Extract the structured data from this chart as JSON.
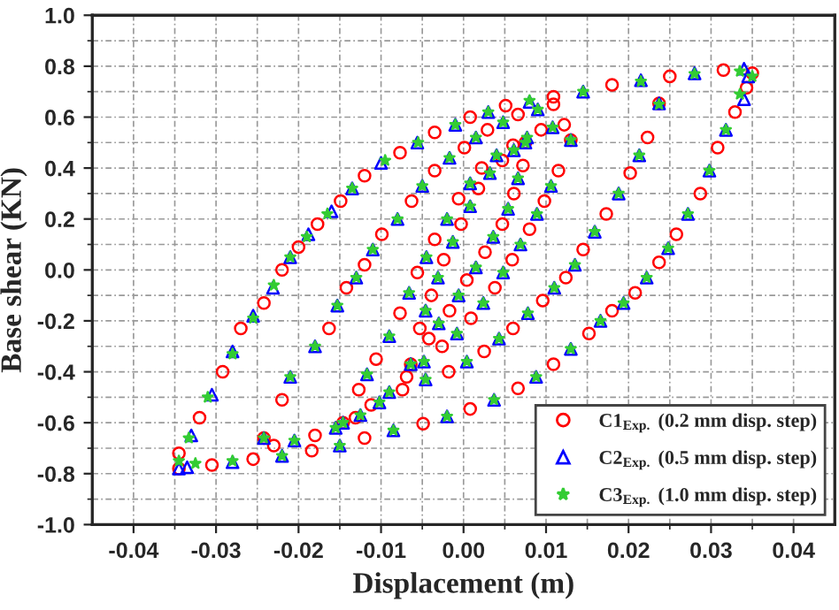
{
  "chart_data": {
    "type": "scatter",
    "xlabel": "Displacement (m)",
    "ylabel": "Base shear (KN)",
    "xlim": [
      -0.045,
      0.045
    ],
    "ylim": [
      -1.0,
      1.0
    ],
    "xticks": [
      -0.04,
      -0.03,
      -0.02,
      -0.01,
      {
        "value": 0,
        "label": "0.00"
      },
      0.01,
      0.02,
      0.03,
      0.04
    ],
    "yticks": [
      {
        "value": -1,
        "label": "-1.0"
      },
      -0.8,
      -0.6,
      -0.4,
      -0.2,
      {
        "value": 0,
        "label": "0.0"
      },
      0.2,
      0.4,
      0.6,
      0.8,
      {
        "value": 1,
        "label": "1.0"
      }
    ],
    "grid": true,
    "legend": "bottom right",
    "series": [
      {
        "name": "C1$_{Exp.}$ (0.2 mm disp. step)",
        "color": "#ff0000",
        "marker": "circle",
        "x": [
          -0.0345,
          -0.0345,
          -0.032,
          -0.0292,
          -0.027,
          -0.0242,
          -0.022,
          -0.02,
          -0.0177,
          -0.0149,
          -0.012,
          -0.0077,
          -0.0035,
          0.0008,
          0.0051,
          0.0109,
          0.018,
          0.025,
          0.0315,
          0.035,
          0.0343,
          0.0329,
          0.0308,
          0.0287,
          0.0258,
          0.0237,
          0.0208,
          0.018,
          0.0152,
          0.0109,
          0.0066,
          0.0008,
          -0.0049,
          -0.012,
          -0.0184,
          -0.0255,
          -0.0305,
          -0.0242,
          -0.022,
          -0.0163,
          -0.0142,
          -0.012,
          -0.0099,
          -0.0063,
          -0.0035,
          0.0001,
          0.0029,
          0.0066,
          0.0109,
          0.0237,
          0.0223,
          0.0202,
          0.0173,
          0.0145,
          0.0124,
          0.0096,
          0.006,
          0.0025,
          -0.0018,
          -0.0074,
          -0.0131,
          -0.018,
          -0.023,
          -0.0146,
          -0.0127,
          -0.0106,
          -0.0077,
          -0.0056,
          -0.0035,
          -0.0006,
          0.0022,
          0.006,
          0.0094,
          0.0122,
          0.013,
          0.0115,
          0.0098,
          0.008,
          0.0059,
          0.0038,
          0.0009,
          -0.0026,
          -0.0069,
          -0.0112,
          -0.0064,
          -0.0053,
          -0.0039,
          -0.0024,
          -0.0003,
          0.0018,
          0.0047,
          0.0075,
          0.0072,
          0.0061,
          0.0047,
          0.0026,
          0.0004,
          -0.0017,
          -0.0042
        ],
        "values": [
          -0.78,
          -0.72,
          -0.58,
          -0.4,
          -0.23,
          -0.13,
          0.0,
          0.09,
          0.18,
          0.27,
          0.37,
          0.46,
          0.54,
          0.6,
          0.645,
          0.68,
          0.727,
          0.76,
          0.785,
          0.773,
          0.715,
          0.62,
          0.48,
          0.3,
          0.14,
          0.03,
          -0.09,
          -0.16,
          -0.25,
          -0.37,
          -0.465,
          -0.546,
          -0.604,
          -0.66,
          -0.71,
          -0.743,
          -0.766,
          -0.66,
          -0.51,
          -0.23,
          -0.07,
          0.02,
          0.14,
          0.27,
          0.39,
          0.48,
          0.55,
          0.61,
          0.65,
          0.654,
          0.52,
          0.38,
          0.22,
          0.08,
          -0.03,
          -0.12,
          -0.23,
          -0.32,
          -0.4,
          -0.47,
          -0.58,
          -0.65,
          -0.69,
          -0.6,
          -0.47,
          -0.35,
          -0.17,
          -0.01,
          0.12,
          0.28,
          0.4,
          0.49,
          0.55,
          0.57,
          0.51,
          0.39,
          0.27,
          0.16,
          0.04,
          -0.07,
          -0.19,
          -0.3,
          -0.42,
          -0.53,
          -0.37,
          -0.23,
          -0.1,
          0.04,
          0.18,
          0.32,
          0.43,
          0.5,
          0.41,
          0.3,
          0.18,
          0.07,
          -0.04,
          -0.16,
          -0.27
        ]
      },
      {
        "name": "C2$_{Exp.}$ (0.5 mm disp. step)",
        "color": "#0000ff",
        "marker": "triangle",
        "x": [
          -0.0345,
          -0.033,
          -0.0305,
          -0.028,
          -0.0255,
          -0.0231,
          -0.021,
          -0.0188,
          -0.016,
          -0.0135,
          -0.01,
          -0.0056,
          -0.001,
          0.003,
          0.008,
          0.0145,
          0.0215,
          0.028,
          0.034,
          0.0345,
          0.034,
          0.0318,
          0.0298,
          0.0272,
          0.0248,
          0.0222,
          0.0194,
          0.0166,
          0.013,
          0.0088,
          0.0037,
          -0.002,
          -0.0085,
          -0.015,
          -0.022,
          -0.028,
          -0.0335,
          -0.0242,
          -0.021,
          -0.018,
          -0.0153,
          -0.013,
          -0.011,
          -0.008,
          -0.005,
          -0.0017,
          0.0015,
          0.0048,
          0.009,
          0.0237,
          0.0213,
          0.0188,
          0.0159,
          0.0135,
          0.011,
          0.0078,
          0.0043,
          0.0004,
          -0.0046,
          -0.0102,
          -0.0155,
          -0.0205,
          -0.0146,
          -0.0117,
          -0.009,
          -0.0066,
          -0.0045,
          -0.002,
          0.0008,
          0.004,
          0.0077,
          0.0108,
          0.013,
          0.0106,
          0.0089,
          0.0069,
          0.0048,
          0.0024,
          -0.0008,
          -0.0048,
          -0.009,
          -0.0125,
          -0.0064,
          -0.0046,
          -0.0031,
          -0.0013,
          0.0008,
          0.0032,
          0.0061,
          0.0075,
          0.0066,
          0.0054,
          0.0036,
          0.0015,
          -0.0006,
          -0.003
        ],
        "values": [
          -0.78,
          -0.65,
          -0.49,
          -0.32,
          -0.18,
          -0.07,
          0.05,
          0.14,
          0.23,
          0.32,
          0.42,
          0.5,
          0.57,
          0.62,
          0.66,
          0.7,
          0.745,
          0.772,
          0.79,
          0.76,
          0.67,
          0.55,
          0.39,
          0.22,
          0.085,
          -0.03,
          -0.13,
          -0.2,
          -0.31,
          -0.42,
          -0.51,
          -0.575,
          -0.63,
          -0.69,
          -0.73,
          -0.755,
          -0.775,
          -0.66,
          -0.42,
          -0.3,
          -0.14,
          -0.03,
          0.08,
          0.2,
          0.33,
          0.44,
          0.52,
          0.58,
          0.63,
          0.654,
          0.45,
          0.3,
          0.15,
          0.02,
          -0.07,
          -0.17,
          -0.27,
          -0.36,
          -0.43,
          -0.52,
          -0.62,
          -0.67,
          -0.6,
          -0.41,
          -0.26,
          -0.09,
          0.05,
          0.2,
          0.34,
          0.45,
          0.52,
          0.56,
          0.51,
          0.33,
          0.22,
          0.1,
          -0.01,
          -0.13,
          -0.25,
          -0.36,
          -0.48,
          -0.57,
          -0.37,
          -0.16,
          -0.03,
          0.11,
          0.25,
          0.38,
          0.47,
          0.5,
          0.36,
          0.24,
          0.13,
          0.01,
          -0.1,
          -0.21
        ]
      },
      {
        "name": "C3$_{Exp.}$ (1.0 mm disp. step)",
        "color": "#33cc33",
        "marker": "star",
        "x": [
          -0.0345,
          -0.0333,
          -0.031,
          -0.028,
          -0.0255,
          -0.023,
          -0.021,
          -0.019,
          -0.0165,
          -0.0135,
          -0.0095,
          -0.0055,
          -0.001,
          0.003,
          0.008,
          0.0145,
          0.0215,
          0.028,
          0.0335,
          0.035,
          0.0335,
          0.0318,
          0.0298,
          0.0272,
          0.0248,
          0.0222,
          0.0194,
          0.0166,
          0.013,
          0.0088,
          0.0037,
          -0.002,
          -0.0085,
          -0.015,
          -0.022,
          -0.028,
          -0.0325,
          -0.0242,
          -0.021,
          -0.018,
          -0.0153,
          -0.013,
          -0.011,
          -0.008,
          -0.005,
          -0.0017,
          0.0015,
          0.0048,
          0.009,
          0.0237,
          0.0213,
          0.0188,
          0.0159,
          0.0135,
          0.011,
          0.0078,
          0.0043,
          0.0004,
          -0.0046,
          -0.0102,
          -0.0155,
          -0.0205,
          -0.0146,
          -0.0117,
          -0.009,
          -0.0066,
          -0.0045,
          -0.002,
          0.0008,
          0.004,
          0.0077,
          0.0108,
          0.013,
          0.0106,
          0.0089,
          0.0069,
          0.0048,
          0.0024,
          -0.0008,
          -0.0048,
          -0.009,
          -0.0125,
          -0.0064,
          -0.0046,
          -0.0031,
          -0.0013,
          0.0008,
          0.0032,
          0.0061,
          0.0075,
          0.0066,
          0.0054,
          0.0036,
          0.0015,
          -0.0006,
          -0.003
        ],
        "values": [
          -0.75,
          -0.66,
          -0.5,
          -0.33,
          -0.19,
          -0.06,
          0.05,
          0.13,
          0.22,
          0.32,
          0.43,
          0.5,
          0.57,
          0.62,
          0.665,
          0.7,
          0.74,
          0.77,
          0.78,
          0.76,
          0.69,
          0.55,
          0.39,
          0.22,
          0.085,
          -0.03,
          -0.13,
          -0.2,
          -0.31,
          -0.42,
          -0.51,
          -0.575,
          -0.63,
          -0.69,
          -0.73,
          -0.75,
          -0.76,
          -0.66,
          -0.42,
          -0.3,
          -0.14,
          -0.03,
          0.08,
          0.2,
          0.33,
          0.44,
          0.52,
          0.58,
          0.63,
          0.65,
          0.45,
          0.3,
          0.15,
          0.02,
          -0.07,
          -0.17,
          -0.27,
          -0.36,
          -0.43,
          -0.52,
          -0.62,
          -0.67,
          -0.6,
          -0.41,
          -0.26,
          -0.09,
          0.05,
          0.2,
          0.34,
          0.45,
          0.52,
          0.56,
          0.51,
          0.33,
          0.22,
          0.1,
          -0.01,
          -0.13,
          -0.25,
          -0.36,
          -0.48,
          -0.57,
          -0.37,
          -0.16,
          -0.03,
          0.11,
          0.25,
          0.38,
          0.47,
          0.5,
          0.36,
          0.24,
          0.13,
          0.01,
          -0.1,
          -0.21
        ]
      }
    ]
  }
}
